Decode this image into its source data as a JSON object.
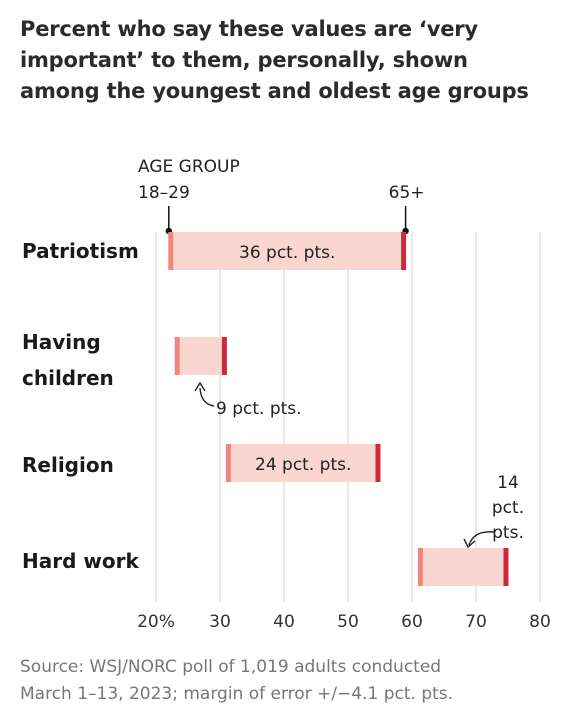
{
  "title_lines": [
    "Percent who say these values are ‘very",
    "important’ to them, personally, shown",
    "among the youngest and oldest age groups"
  ],
  "legend": {
    "heading": "AGE GROUP",
    "young_label": "18–29",
    "old_label": "65+"
  },
  "source_lines": [
    "Source: WSJ/NORC poll of 1,019 adults conducted",
    "March 1–13, 2023; margin of error +/−4.1 pct. pts."
  ],
  "colors": {
    "band": "#f9d6cf",
    "young": "#f0877a",
    "old": "#cc2b3c",
    "grid": "#e0e0e0",
    "axis_text": "#333333",
    "source": "#777777"
  },
  "chart_data": {
    "type": "dumbbell",
    "categories": [
      "Patriotism",
      "Having children",
      "Religion",
      "Hard work"
    ],
    "category_lines": [
      [
        "Patriotism"
      ],
      [
        "Having",
        "children"
      ],
      [
        "Religion"
      ],
      [
        "Hard work"
      ]
    ],
    "series": [
      {
        "name": "18–29",
        "values": [
          22,
          23,
          31,
          61
        ]
      },
      {
        "name": "65+",
        "values": [
          59,
          31,
          55,
          75
        ]
      }
    ],
    "gap_labels": [
      [
        "36 pct. pts."
      ],
      [
        "9 pct. pts."
      ],
      [
        "24 pct. pts."
      ],
      [
        "14",
        "pct.",
        "pts."
      ]
    ],
    "xticks": [
      20,
      30,
      40,
      50,
      60,
      70,
      80
    ],
    "xtick_labels": [
      "20%",
      "30",
      "40",
      "50",
      "60",
      "70",
      "80"
    ],
    "xlim": [
      20,
      80
    ],
    "grid": true
  }
}
